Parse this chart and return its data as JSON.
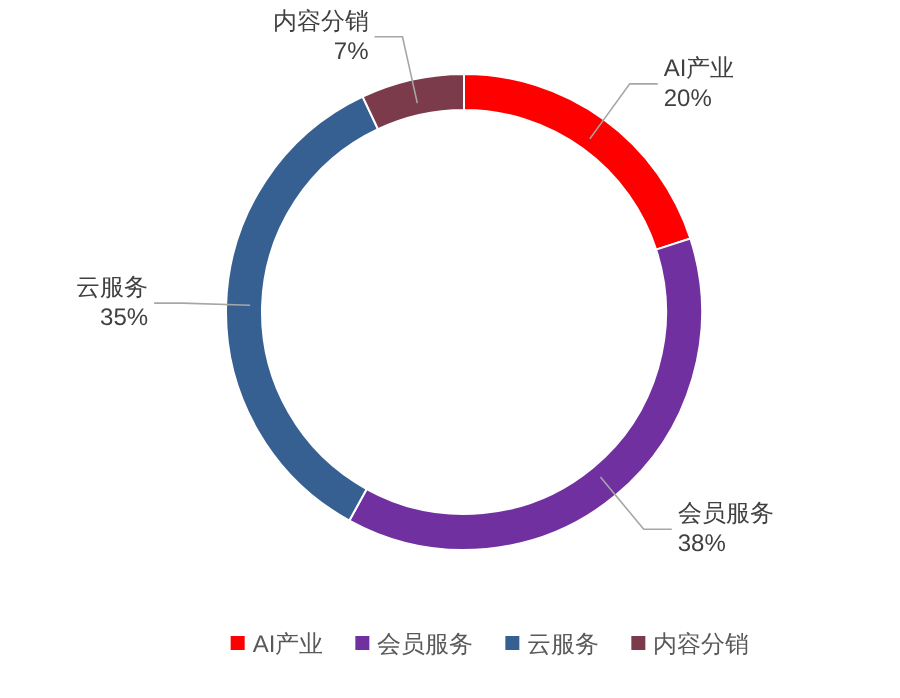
{
  "chart_data": {
    "type": "donut",
    "categories": [
      "AI产业",
      "会员服务",
      "云服务",
      "内容分销"
    ],
    "values": [
      20,
      38,
      35,
      7
    ],
    "colors": [
      "#ff0000",
      "#7030a0",
      "#376092",
      "#7b3b4b"
    ],
    "value_labels": [
      "20%",
      "38%",
      "35%",
      "7%"
    ],
    "legend": "bottom"
  }
}
